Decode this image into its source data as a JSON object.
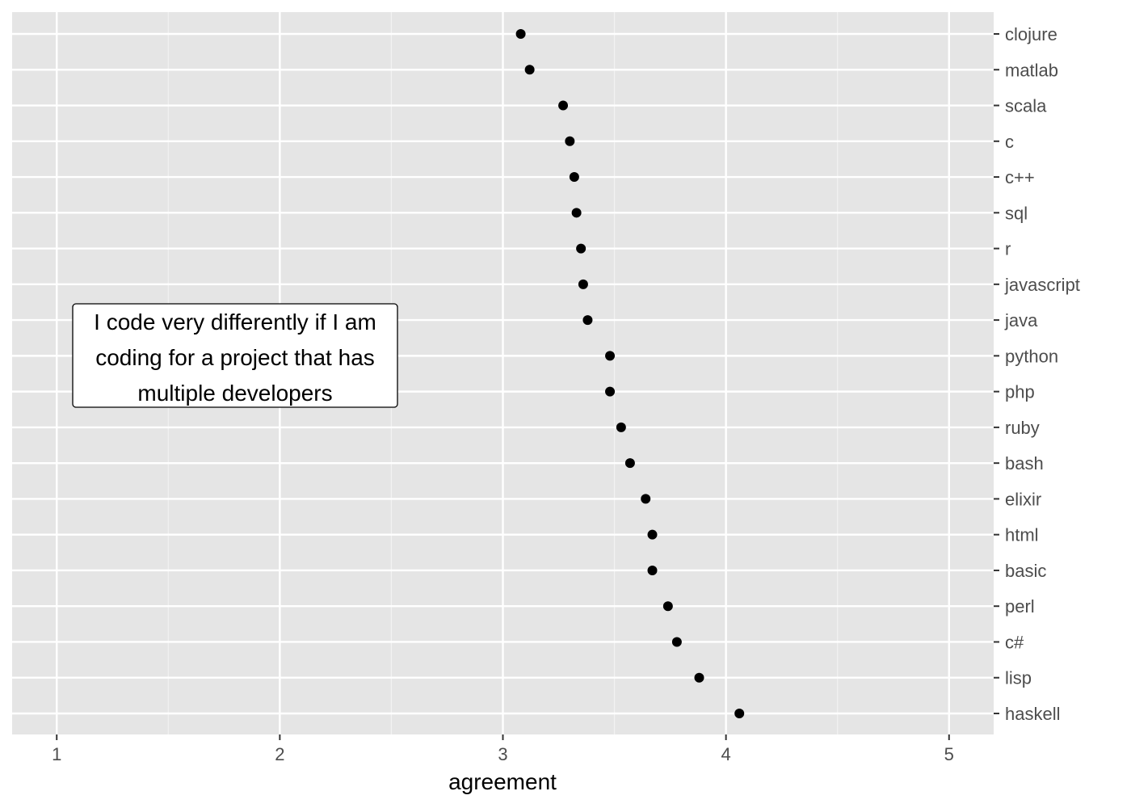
{
  "colors": {
    "panel_background": "#e5e5e5",
    "grid_major": "#ffffff",
    "grid_minor": "#f2f2f2",
    "point": "#000000",
    "tick_text": "#4d4d4d"
  },
  "annotation": {
    "lines": [
      "I code very differently if I am",
      "coding for a project that has",
      "multiple developers"
    ]
  },
  "chart_data": {
    "type": "scatter",
    "orientation": "dot-plot, categories on y axis",
    "xlabel": "agreement",
    "ylabel": "",
    "xlim": [
      0.8,
      5.2
    ],
    "x_ticks": [
      1,
      2,
      3,
      4,
      5
    ],
    "y_axis_position": "right",
    "grid": true,
    "legend": "none",
    "categories": [
      "clojure",
      "matlab",
      "scala",
      "c",
      "c++",
      "sql",
      "r",
      "javascript",
      "java",
      "python",
      "php",
      "ruby",
      "bash",
      "elixir",
      "html",
      "basic",
      "perl",
      "c#",
      "lisp",
      "haskell"
    ],
    "values": [
      3.08,
      3.12,
      3.27,
      3.3,
      3.32,
      3.33,
      3.35,
      3.36,
      3.38,
      3.48,
      3.48,
      3.53,
      3.57,
      3.64,
      3.67,
      3.67,
      3.74,
      3.78,
      3.88,
      4.06
    ]
  }
}
